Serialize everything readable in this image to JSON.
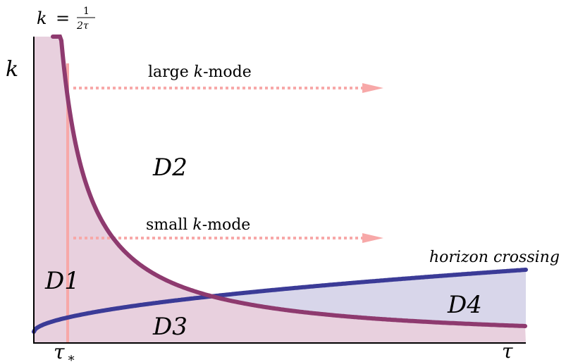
{
  "labels": {
    "curve_formula": {
      "lhs": "k",
      "eq": "=",
      "num": "1",
      "den": "2τ"
    },
    "y_axis": "k",
    "x_axis": "τ",
    "tau_star": {
      "base": "τ",
      "sub": "∗"
    },
    "large_mode": {
      "pre": "large ",
      "k": "k",
      "post": "-mode"
    },
    "small_mode": {
      "pre": "small ",
      "k": "k",
      "post": "-mode"
    },
    "horizon_crossing": "horizon crossing",
    "regions": {
      "d1": "D1",
      "d2": "D2",
      "d3": "D3",
      "d4": "D4"
    }
  },
  "colors": {
    "hyperbola": "#8e3a6f",
    "horizon_curve": "#3b3b97",
    "tau_star_line": "#f7a8a8",
    "arrows": "#f7a8a8",
    "region_pink": "#e8d0de",
    "region_blue": "#d8d6ea",
    "axis": "#000000"
  },
  "icons": {
    "arrow_head": "triangle-arrowhead"
  }
}
